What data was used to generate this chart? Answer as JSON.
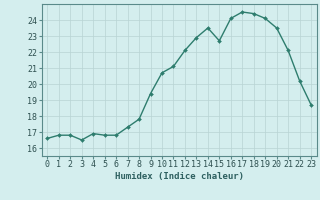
{
  "x": [
    0,
    1,
    2,
    3,
    4,
    5,
    6,
    7,
    8,
    9,
    10,
    11,
    12,
    13,
    14,
    15,
    16,
    17,
    18,
    19,
    20,
    21,
    22,
    23
  ],
  "y": [
    16.6,
    16.8,
    16.8,
    16.5,
    16.9,
    16.8,
    16.8,
    17.3,
    17.8,
    19.4,
    20.7,
    21.1,
    22.1,
    22.9,
    23.5,
    22.7,
    24.1,
    24.5,
    24.4,
    24.1,
    23.5,
    22.1,
    20.2,
    18.7
  ],
  "line_color": "#2e7d6e",
  "marker": "D",
  "marker_size": 2.0,
  "bg_color": "#d4eeee",
  "grid_color": "#b8d4d4",
  "xlabel": "Humidex (Indice chaleur)",
  "xlim": [
    -0.5,
    23.5
  ],
  "ylim": [
    15.5,
    25.0
  ],
  "yticks": [
    16,
    17,
    18,
    19,
    20,
    21,
    22,
    23,
    24
  ],
  "xticks": [
    0,
    1,
    2,
    3,
    4,
    5,
    6,
    7,
    8,
    9,
    10,
    11,
    12,
    13,
    14,
    15,
    16,
    17,
    18,
    19,
    20,
    21,
    22,
    23
  ],
  "xlabel_fontsize": 6.5,
  "tick_fontsize": 6.0,
  "line_width": 1.0
}
